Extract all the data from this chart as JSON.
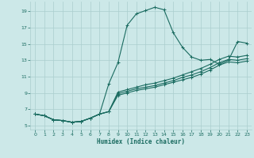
{
  "xlabel": "Humidex (Indice chaleur)",
  "bg_color": "#cce8e8",
  "line_color": "#1a6b60",
  "grid_color": "#aacece",
  "xlim": [
    -0.5,
    23.5
  ],
  "ylim": [
    4.5,
    20.2
  ],
  "yticks": [
    5,
    7,
    9,
    11,
    13,
    15,
    17,
    19
  ],
  "xticks": [
    0,
    1,
    2,
    3,
    4,
    5,
    6,
    7,
    8,
    9,
    10,
    11,
    12,
    13,
    14,
    15,
    16,
    17,
    18,
    19,
    20,
    21,
    22,
    23
  ],
  "line_top": [
    6.4,
    6.2,
    5.7,
    5.6,
    5.4,
    5.5,
    5.9,
    6.4,
    10.1,
    12.7,
    17.3,
    18.7,
    19.1,
    19.5,
    19.2,
    16.4,
    14.6,
    13.4,
    13.0,
    13.1,
    12.5,
    13.0,
    15.3,
    15.1
  ],
  "line2": [
    6.4,
    6.2,
    5.7,
    5.6,
    5.4,
    5.5,
    5.9,
    6.4,
    6.7,
    9.1,
    9.4,
    9.7,
    10.0,
    10.2,
    10.5,
    10.8,
    11.2,
    11.6,
    12.0,
    12.5,
    13.1,
    13.5,
    13.4,
    13.6
  ],
  "line3": [
    6.4,
    6.2,
    5.7,
    5.6,
    5.4,
    5.5,
    5.9,
    6.4,
    6.7,
    8.9,
    9.2,
    9.5,
    9.7,
    9.9,
    10.2,
    10.5,
    10.9,
    11.2,
    11.6,
    12.1,
    12.7,
    13.1,
    13.0,
    13.2
  ],
  "line4": [
    6.4,
    6.2,
    5.7,
    5.6,
    5.4,
    5.5,
    5.9,
    6.4,
    6.7,
    8.7,
    9.0,
    9.3,
    9.5,
    9.7,
    10.0,
    10.3,
    10.6,
    10.9,
    11.3,
    11.8,
    12.4,
    12.8,
    12.7,
    12.9
  ]
}
